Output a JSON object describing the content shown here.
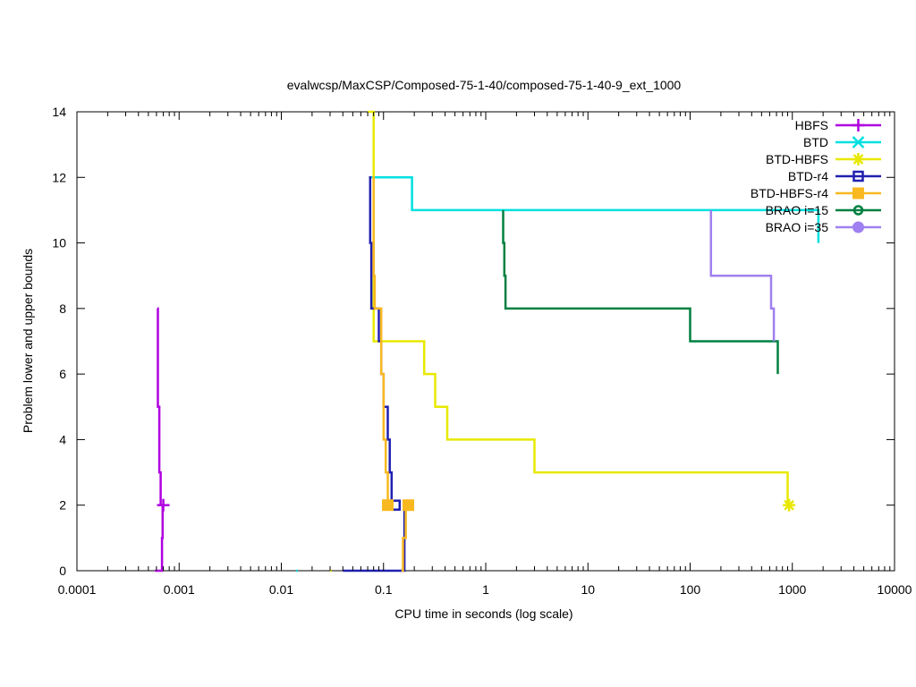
{
  "chart_data": {
    "type": "line",
    "title": "evalwcsp/MaxCSP/Composed-75-1-40/composed-75-1-40-9_ext_1000",
    "xlabel": "CPU time in seconds (log scale)",
    "ylabel": "Problem lower and upper bounds",
    "xscale": "log",
    "xlim": [
      0.0001,
      10000
    ],
    "ylim": [
      0,
      14
    ],
    "xticks": [
      0.0001,
      0.001,
      0.01,
      0.1,
      1,
      10,
      100,
      1000,
      10000
    ],
    "xtick_labels": [
      "0.0001",
      "0.001",
      "0.01",
      "0.1",
      "1",
      "10",
      "100",
      "1000",
      "10000"
    ],
    "yticks": [
      0,
      2,
      4,
      6,
      8,
      10,
      12,
      14
    ],
    "ytick_labels": [
      "0",
      "2",
      "4",
      "6",
      "8",
      "10",
      "12",
      "14"
    ],
    "grid": false,
    "legend_position": "top-right",
    "series": [
      {
        "name": "HBFS",
        "color": "#b000e0",
        "marker": "plus",
        "paths": [
          [
            [
              0.00061,
              8
            ],
            [
              0.00062,
              8
            ],
            [
              0.00062,
              5
            ],
            [
              0.00064,
              5
            ],
            [
              0.00064,
              3
            ],
            [
              0.00066,
              3
            ],
            [
              0.00066,
              2
            ]
          ],
          [
            [
              0.00058,
              0
            ],
            [
              0.00068,
              0
            ],
            [
              0.00068,
              1
            ],
            [
              0.00069,
              1
            ],
            [
              0.00069,
              2
            ]
          ]
        ],
        "points": [
          [
            0.0007,
            2
          ]
        ]
      },
      {
        "name": "BTD",
        "color": "#00e0e0",
        "marker": "cross",
        "paths": [
          [
            [
              0.075,
              12
            ],
            [
              0.19,
              12
            ],
            [
              0.19,
              11
            ],
            [
              1800,
              11
            ],
            [
              1800,
              10
            ]
          ],
          [
            [
              0.014,
              0
            ],
            [
              0.0145,
              0
            ]
          ]
        ],
        "points": []
      },
      {
        "name": "BTD-HBFS",
        "color": "#e8e800",
        "marker": "star",
        "paths": [
          [
            [
              0.07,
              14
            ],
            [
              0.08,
              14
            ],
            [
              0.08,
              7
            ],
            [
              0.25,
              7
            ],
            [
              0.25,
              6
            ],
            [
              0.32,
              6
            ],
            [
              0.32,
              5
            ],
            [
              0.42,
              5
            ],
            [
              0.42,
              4
            ],
            [
              3.0,
              4
            ],
            [
              3.0,
              3
            ],
            [
              900,
              3
            ],
            [
              900,
              2
            ]
          ],
          [
            [
              0.03,
              0
            ],
            [
              0.031,
              0
            ]
          ]
        ],
        "points": [
          [
            930,
            2
          ]
        ]
      },
      {
        "name": "BTD-r4",
        "color": "#2020b0",
        "marker": "open-square",
        "paths": [
          [
            [
              0.072,
              12
            ],
            [
              0.074,
              12
            ],
            [
              0.074,
              10
            ],
            [
              0.076,
              10
            ],
            [
              0.076,
              8
            ],
            [
              0.09,
              8
            ],
            [
              0.09,
              7
            ],
            [
              0.095,
              7
            ],
            [
              0.095,
              6
            ],
            [
              0.1,
              6
            ],
            [
              0.1,
              5
            ],
            [
              0.11,
              5
            ],
            [
              0.11,
              4
            ],
            [
              0.115,
              4
            ],
            [
              0.115,
              3
            ],
            [
              0.12,
              3
            ],
            [
              0.12,
              2
            ]
          ],
          [
            [
              0.04,
              0
            ],
            [
              0.16,
              0
            ],
            [
              0.16,
              2
            ]
          ]
        ],
        "points": [
          [
            0.13,
            2
          ]
        ]
      },
      {
        "name": "BTD-HBFS-r4",
        "color": "#f8b820",
        "marker": "filled-square",
        "paths": [
          [
            [
              0.078,
              12
            ],
            [
              0.08,
              12
            ],
            [
              0.08,
              9
            ],
            [
              0.082,
              9
            ],
            [
              0.082,
              8
            ],
            [
              0.095,
              8
            ],
            [
              0.095,
              6
            ],
            [
              0.1,
              6
            ],
            [
              0.1,
              4
            ],
            [
              0.105,
              4
            ],
            [
              0.105,
              3
            ],
            [
              0.11,
              3
            ],
            [
              0.11,
              2
            ]
          ],
          [
            [
              0.15,
              0
            ],
            [
              0.155,
              0
            ],
            [
              0.155,
              1
            ],
            [
              0.165,
              1
            ],
            [
              0.165,
              2
            ]
          ]
        ],
        "points": [
          [
            0.11,
            2
          ],
          [
            0.175,
            2
          ]
        ]
      },
      {
        "name": "BRAO i=15",
        "color": "#008040",
        "marker": "open-circle",
        "paths": [
          [
            [
              1.48,
              11
            ],
            [
              1.48,
              10
            ],
            [
              1.52,
              10
            ],
            [
              1.52,
              9
            ],
            [
              1.56,
              9
            ],
            [
              1.56,
              8
            ],
            [
              100,
              8
            ],
            [
              100,
              7
            ],
            [
              720,
              7
            ],
            [
              720,
              6
            ]
          ]
        ],
        "points": []
      },
      {
        "name": "BRAO i=35",
        "color": "#a080f0",
        "marker": "filled-circle",
        "paths": [
          [
            [
              160,
              11
            ],
            [
              160,
              9
            ],
            [
              620,
              9
            ],
            [
              620,
              8
            ],
            [
              660,
              8
            ],
            [
              660,
              7
            ]
          ]
        ],
        "points": []
      }
    ]
  }
}
